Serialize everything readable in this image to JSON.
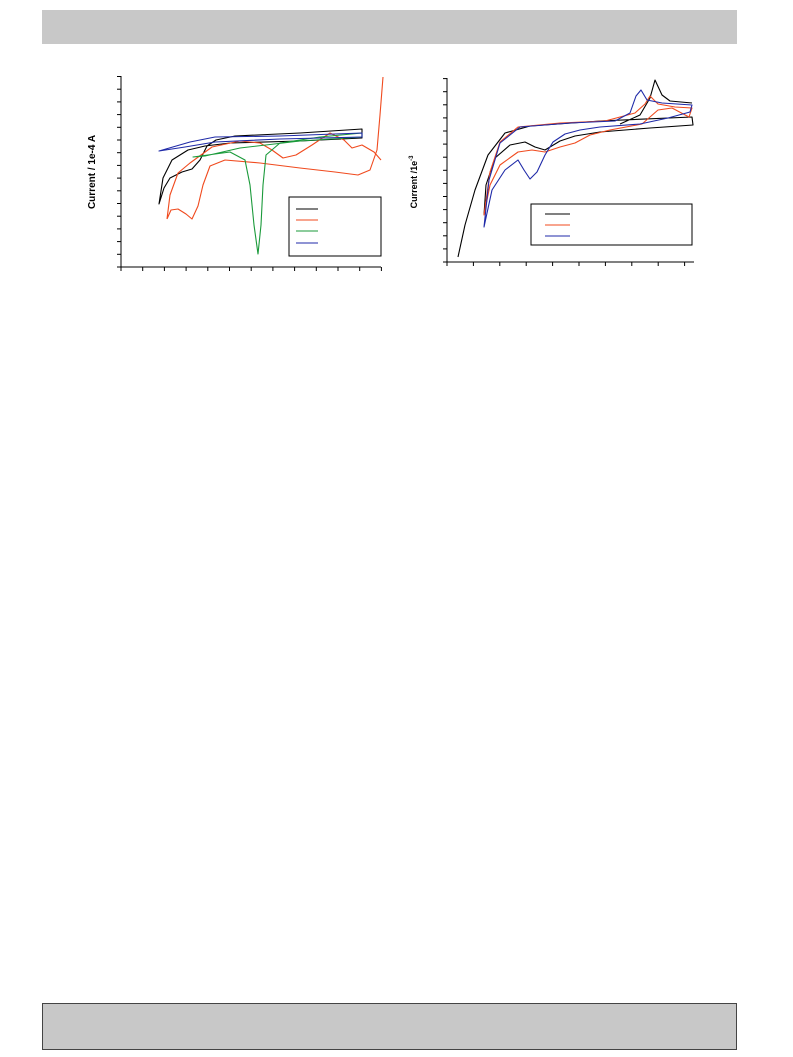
{
  "figures": [
    {
      "y_axis_label": "Current / 1e-4 A"
    },
    {
      "y_axis_label": "Current /1e",
      "y_axis_label_exponent": "-3"
    }
  ]
}
